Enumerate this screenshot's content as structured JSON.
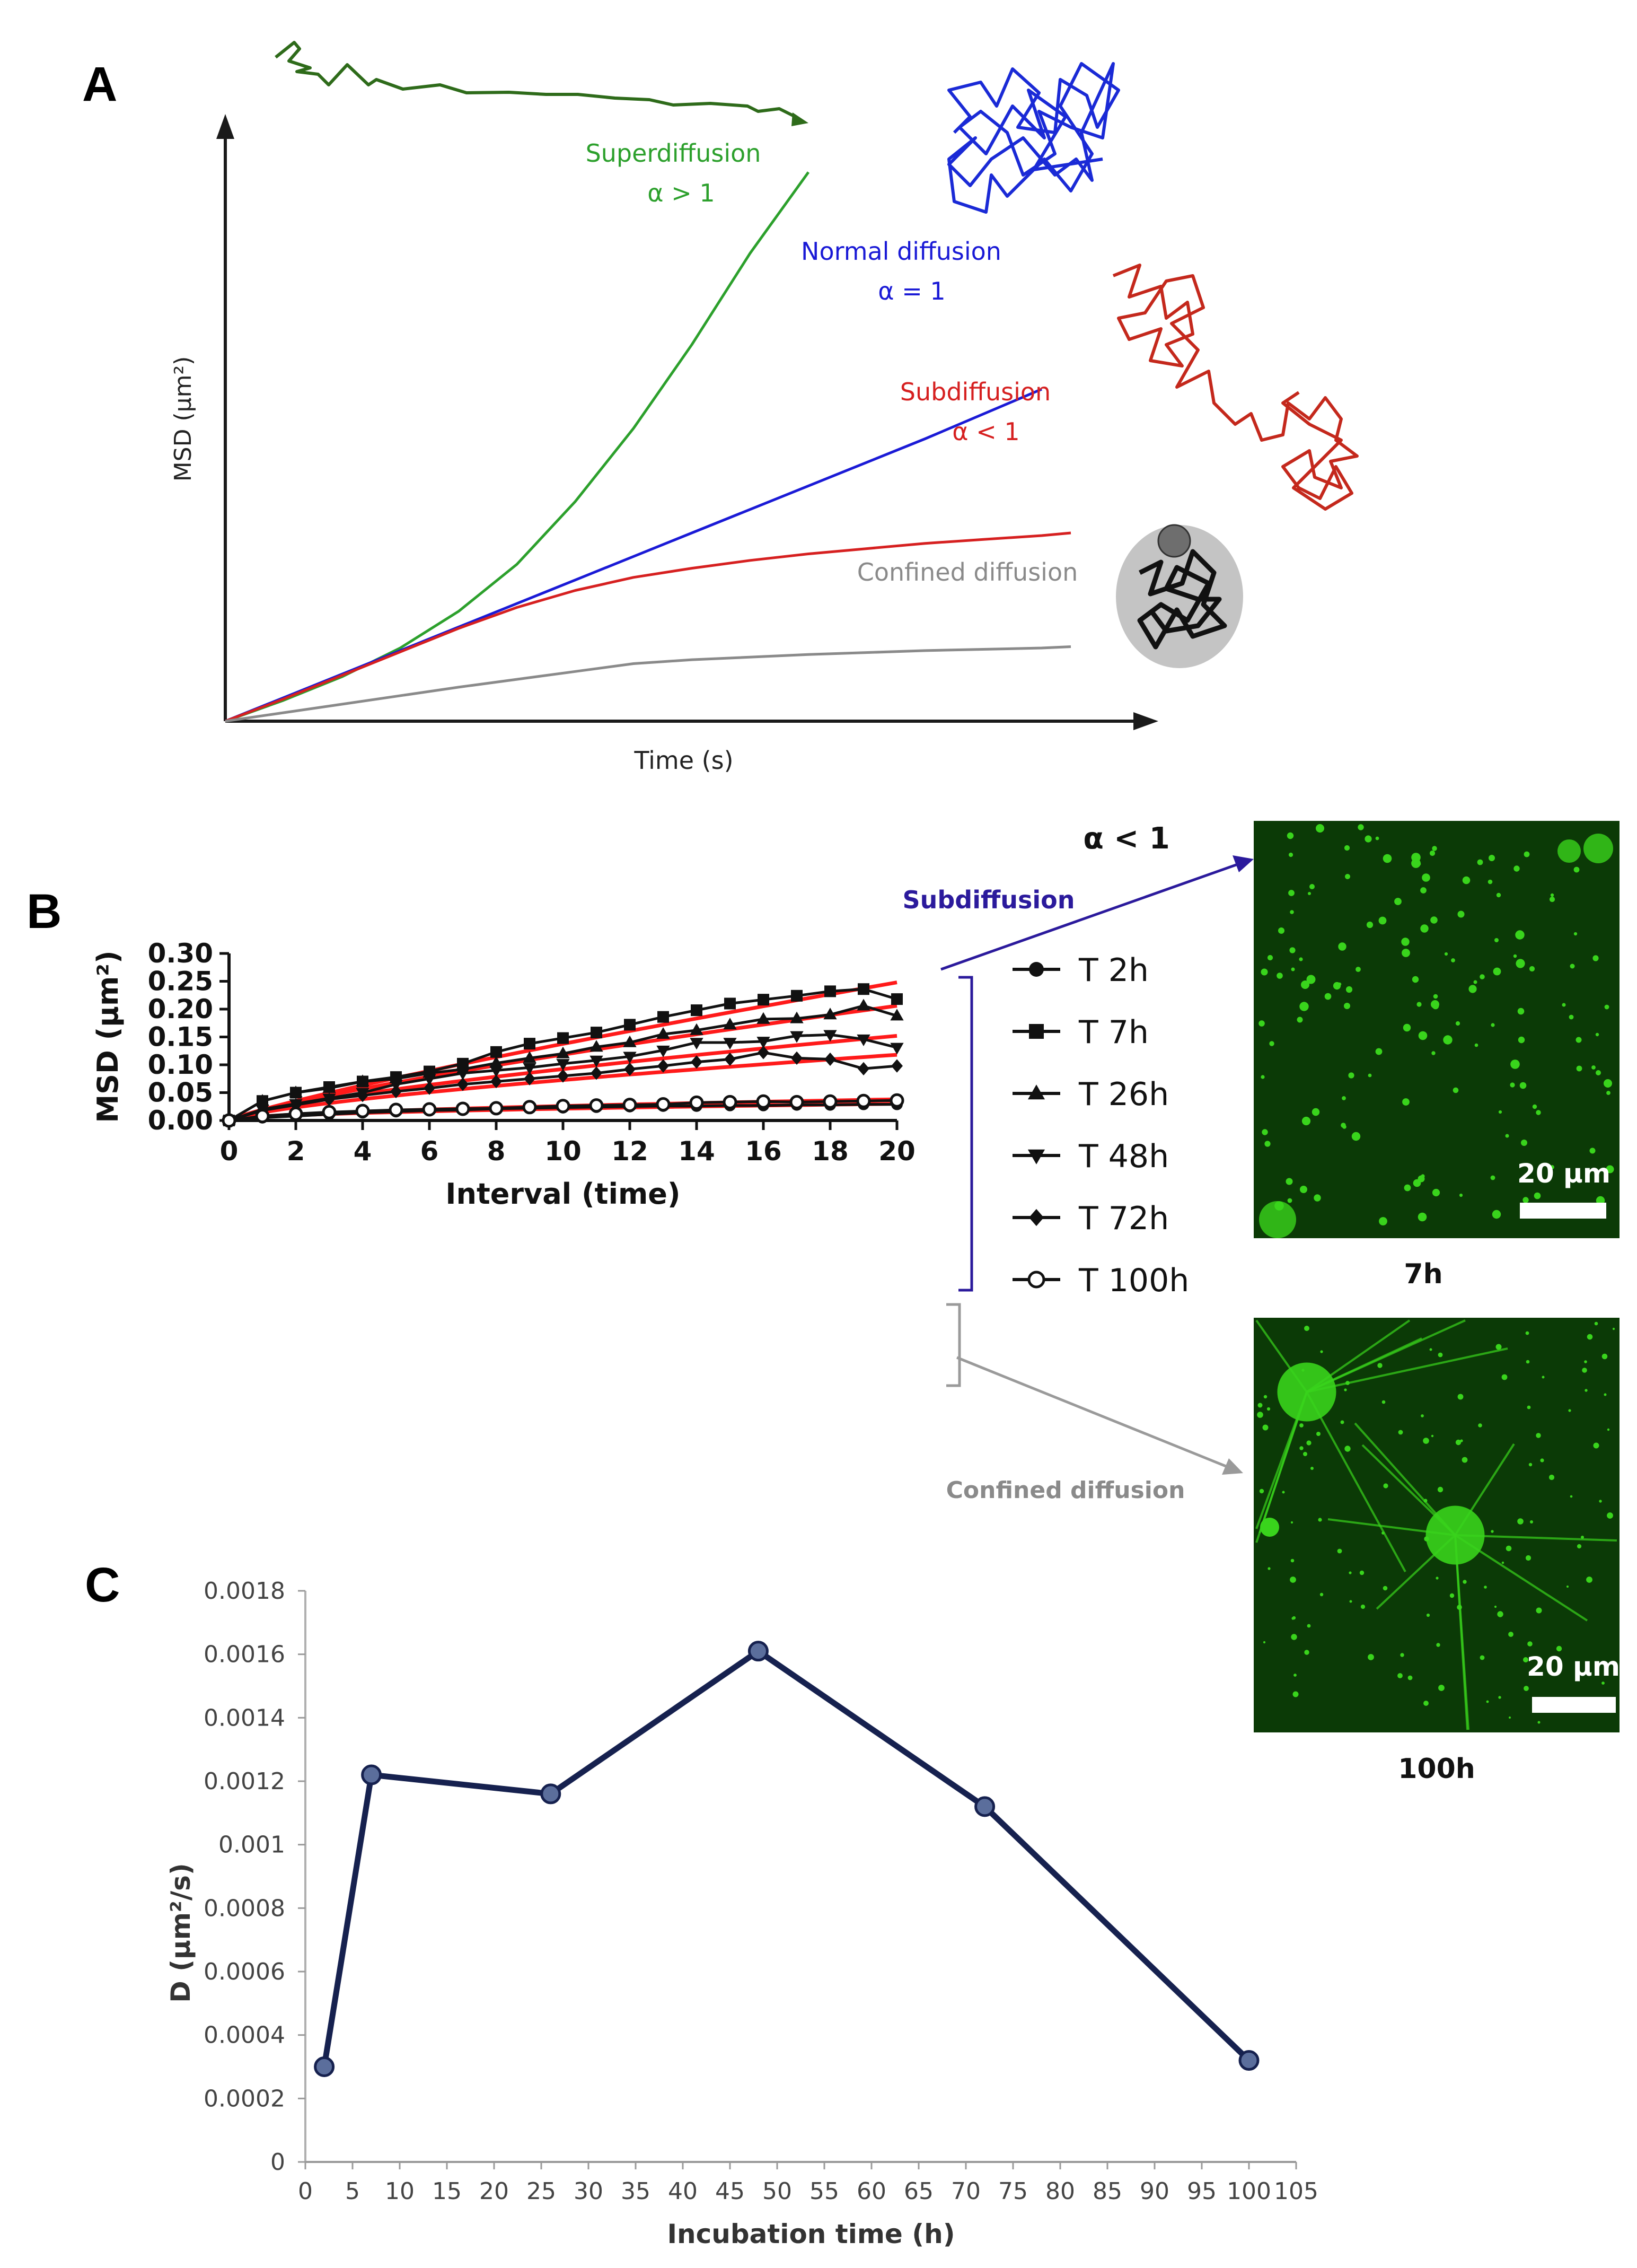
{
  "panel_labels": {
    "a": "A",
    "b": "B",
    "c": "C"
  },
  "colors": {
    "green": "#2ca02c",
    "blue": "#1a1ad6",
    "red": "#d62020",
    "gray": "#8a8a8a",
    "navy": "#16214f",
    "marker": "#5b6e9c",
    "fit": "#ff1a1a",
    "bracket_blue": "#2b1a9c",
    "bracket_gray": "#9a9a9a",
    "dark_green_path": "#2e6b1a",
    "blue_path": "#1a2ad6",
    "red_path": "#c4281c",
    "micro_bg": "#0b3a06",
    "micro_fg": "#39d41c"
  },
  "chart_data": [
    {
      "id": "A",
      "type": "line",
      "title": "",
      "xlabel": "Time (s)",
      "ylabel": "MSD (μm²)",
      "curves": [
        {
          "name": "Superdiffusion",
          "alpha_text": "α > 1",
          "color": "#2ca02c",
          "x": [
            0,
            1,
            2,
            3,
            4,
            5,
            6,
            7,
            8,
            9,
            10
          ],
          "y": [
            0,
            0.8,
            1.7,
            2.8,
            4.2,
            6.0,
            8.4,
            11.2,
            14.4,
            17.9,
            21.0
          ]
        },
        {
          "name": "Normal diffusion",
          "alpha_text": "α = 1",
          "color": "#1a1ad6",
          "x": [
            0,
            2,
            4,
            6,
            8,
            10,
            12,
            14
          ],
          "y": [
            0,
            1.8,
            3.6,
            5.4,
            7.2,
            9.0,
            10.8,
            12.7
          ]
        },
        {
          "name": "Subdiffusion",
          "alpha_text": "α < 1",
          "color": "#d62020",
          "x": [
            0,
            1,
            2,
            3,
            4,
            5,
            6,
            7,
            8,
            9,
            10,
            11,
            12,
            13,
            14,
            14.5
          ],
          "y": [
            0,
            0.85,
            1.75,
            2.65,
            3.55,
            4.35,
            5.0,
            5.5,
            5.85,
            6.15,
            6.4,
            6.6,
            6.8,
            6.95,
            7.1,
            7.2
          ]
        },
        {
          "name": "Confined diffusion",
          "alpha_text": "",
          "color": "#8a8a8a",
          "x": [
            0,
            2,
            4,
            6,
            7,
            8,
            10,
            12,
            14,
            14.5
          ],
          "y": [
            0,
            0.65,
            1.3,
            1.9,
            2.2,
            2.35,
            2.55,
            2.7,
            2.8,
            2.85
          ]
        }
      ],
      "xlim": [
        0,
        15.5
      ],
      "ylim": [
        0,
        21.5
      ]
    },
    {
      "id": "B",
      "type": "line",
      "title": "",
      "xlabel": "Interval (time)",
      "ylabel": "MSD (μm²)",
      "xlim": [
        0,
        20
      ],
      "ylim": [
        0,
        0.3
      ],
      "xticks": [
        "0",
        "2",
        "4",
        "6",
        "8",
        "10",
        "12",
        "14",
        "16",
        "18",
        "20"
      ],
      "yticks": [
        "0.00",
        "0.05",
        "0.10",
        "0.15",
        "0.20",
        "0.25",
        "0.30"
      ],
      "series": [
        {
          "name": "T 2h",
          "marker": "circle-filled",
          "x": [
            0,
            1,
            2,
            3,
            4,
            5,
            6,
            7,
            8,
            9,
            10,
            11,
            12,
            13,
            14,
            15,
            16,
            17,
            18,
            19,
            20
          ],
          "y": [
            0,
            0.005,
            0.008,
            0.011,
            0.014,
            0.016,
            0.018,
            0.019,
            0.021,
            0.022,
            0.023,
            0.024,
            0.025,
            0.026,
            0.026,
            0.027,
            0.027,
            0.028,
            0.028,
            0.029,
            0.029
          ]
        },
        {
          "name": "T 7h",
          "marker": "square",
          "x": [
            0,
            1,
            2,
            3,
            4,
            5,
            6,
            7,
            8,
            9,
            10,
            11,
            12,
            13,
            14,
            15,
            16,
            17,
            18,
            19,
            20
          ],
          "y": [
            0,
            0.035,
            0.05,
            0.06,
            0.07,
            0.078,
            0.088,
            0.102,
            0.123,
            0.138,
            0.148,
            0.158,
            0.172,
            0.186,
            0.198,
            0.21,
            0.217,
            0.224,
            0.232,
            0.236,
            0.218
          ]
        },
        {
          "name": "T 26h",
          "marker": "triangle-up",
          "x": [
            0,
            1,
            2,
            3,
            4,
            5,
            6,
            7,
            8,
            9,
            10,
            11,
            12,
            13,
            14,
            15,
            16,
            17,
            18,
            19,
            20
          ],
          "y": [
            0,
            0.035,
            0.05,
            0.058,
            0.07,
            0.075,
            0.085,
            0.092,
            0.103,
            0.112,
            0.12,
            0.132,
            0.14,
            0.155,
            0.162,
            0.172,
            0.182,
            0.183,
            0.19,
            0.206,
            0.188
          ]
        },
        {
          "name": "T 48h",
          "marker": "triangle-down",
          "x": [
            0,
            1,
            2,
            3,
            4,
            5,
            6,
            7,
            8,
            9,
            10,
            11,
            12,
            13,
            14,
            15,
            16,
            17,
            18,
            19,
            20
          ],
          "y": [
            0,
            0.02,
            0.03,
            0.04,
            0.05,
            0.065,
            0.075,
            0.085,
            0.09,
            0.095,
            0.102,
            0.108,
            0.115,
            0.126,
            0.14,
            0.14,
            0.142,
            0.152,
            0.154,
            0.146,
            0.131
          ]
        },
        {
          "name": "T 72h",
          "marker": "diamond",
          "x": [
            0,
            1,
            2,
            3,
            4,
            5,
            6,
            7,
            8,
            9,
            10,
            11,
            12,
            13,
            14,
            15,
            16,
            17,
            18,
            19,
            20
          ],
          "y": [
            0,
            0.018,
            0.028,
            0.038,
            0.045,
            0.052,
            0.058,
            0.065,
            0.07,
            0.075,
            0.08,
            0.085,
            0.092,
            0.098,
            0.105,
            0.11,
            0.122,
            0.112,
            0.11,
            0.093,
            0.098
          ]
        },
        {
          "name": "T 100h",
          "marker": "circle-open",
          "x": [
            0,
            1,
            2,
            3,
            4,
            5,
            6,
            7,
            8,
            9,
            10,
            11,
            12,
            13,
            14,
            15,
            16,
            17,
            18,
            19,
            20
          ],
          "y": [
            0,
            0.008,
            0.012,
            0.015,
            0.017,
            0.019,
            0.02,
            0.021,
            0.022,
            0.024,
            0.026,
            0.027,
            0.028,
            0.029,
            0.032,
            0.033,
            0.034,
            0.033,
            0.034,
            0.035,
            0.036
          ]
        }
      ],
      "fits": [
        {
          "x": [
            0,
            20
          ],
          "y": [
            0,
            0.248
          ],
          "exponent": 0.85
        },
        {
          "x": [
            0,
            20
          ],
          "y": [
            0,
            0.206
          ],
          "exponent": 0.8
        },
        {
          "x": [
            0,
            20
          ],
          "y": [
            0,
            0.152
          ],
          "exponent": 0.72
        },
        {
          "x": [
            0,
            20
          ],
          "y": [
            0,
            0.118
          ],
          "exponent": 0.7
        },
        {
          "x": [
            0,
            20
          ],
          "y": [
            0,
            0.038
          ],
          "exponent": 0.55
        },
        {
          "x": [
            0,
            20
          ],
          "y": [
            0,
            0.03
          ],
          "exponent": 0.5
        }
      ],
      "annotations": {
        "alpha": "α < 1",
        "subdiffusion": "Subdiffusion",
        "confined": "Confined diffusion"
      },
      "images": [
        {
          "caption": "7h",
          "scale_bar": "20 μm"
        },
        {
          "caption": "100h",
          "scale_bar": "20 μm"
        }
      ]
    },
    {
      "id": "C",
      "type": "line",
      "title": "",
      "xlabel": "Incubation time (h)",
      "ylabel": "D (μm²/s)",
      "x": [
        2,
        7,
        26,
        48,
        72,
        100
      ],
      "y": [
        0.0003,
        0.00122,
        0.00116,
        0.00161,
        0.00112,
        0.00032
      ],
      "xlim": [
        0,
        105
      ],
      "ylim": [
        0,
        0.0018
      ],
      "xticks": [
        "0",
        "5",
        "10",
        "15",
        "20",
        "25",
        "30",
        "35",
        "40",
        "45",
        "50",
        "55",
        "60",
        "65",
        "70",
        "75",
        "80",
        "85",
        "90",
        "95",
        "100",
        "105"
      ],
      "yticks": [
        "0",
        "0.0002",
        "0.0004",
        "0.0006",
        "0.0008",
        "0.001",
        "0.0012",
        "0.0014",
        "0.0016",
        "0.0018"
      ],
      "grid": false
    }
  ]
}
